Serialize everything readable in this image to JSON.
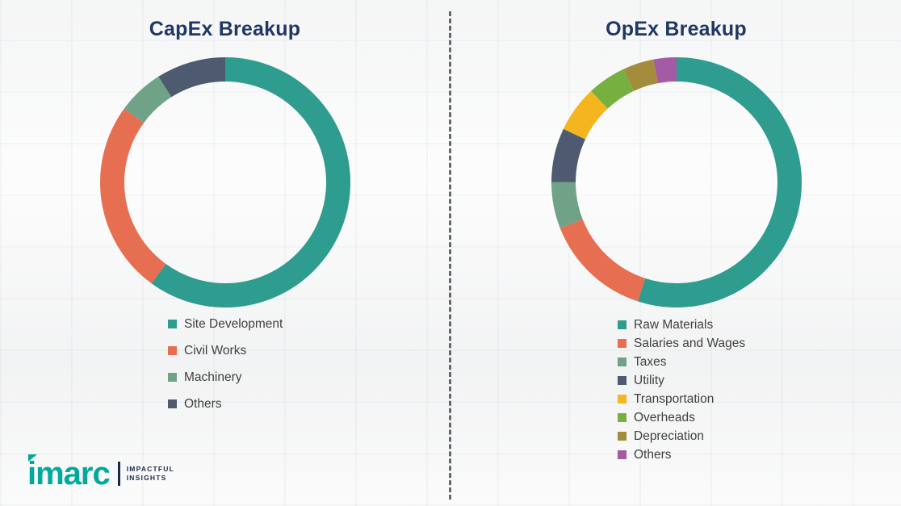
{
  "page": {
    "background_description": "faint washed-out industrial factory photo",
    "divider": "vertical dashed line between the two charts"
  },
  "chart_data": [
    {
      "type": "pie",
      "subtype": "donut",
      "title": "CapEx Breakup",
      "title_color": "#1F3864",
      "legend_position": "below",
      "direction": "clockwise",
      "start_angle_deg": 0,
      "values_are_percent_estimates": true,
      "segments": [
        {
          "label": "Site Development",
          "value": 60,
          "color": "#2E9C8E"
        },
        {
          "label": "Civil Works",
          "value": 25,
          "color": "#E76F51"
        },
        {
          "label": "Machinery",
          "value": 6,
          "color": "#6FA287"
        },
        {
          "label": "Others",
          "value": 9,
          "color": "#4D5A70"
        }
      ]
    },
    {
      "type": "pie",
      "subtype": "donut",
      "title": "OpEx Breakup",
      "title_color": "#1F3864",
      "legend_position": "below",
      "direction": "clockwise",
      "start_angle_deg": 0,
      "values_are_percent_estimates": true,
      "segments": [
        {
          "label": "Raw Materials",
          "value": 55,
          "color": "#2E9C8E"
        },
        {
          "label": "Salaries and Wages",
          "value": 14,
          "color": "#E76F51"
        },
        {
          "label": "Taxes",
          "value": 6,
          "color": "#6FA287"
        },
        {
          "label": "Utility",
          "value": 7,
          "color": "#4D5A70"
        },
        {
          "label": "Transportation",
          "value": 6,
          "color": "#F5B51E"
        },
        {
          "label": "Overheads",
          "value": 5,
          "color": "#76B041"
        },
        {
          "label": "Depreciation",
          "value": 4,
          "color": "#A38D3C"
        },
        {
          "label": "Others",
          "value": 3,
          "color": "#A35BA3"
        }
      ]
    }
  ],
  "logo": {
    "brand": "imarc",
    "tagline_line1": "IMPACTFUL",
    "tagline_line2": "INSIGHTS",
    "brand_color": "#00A99C",
    "tagline_color": "#1A2B4A"
  }
}
